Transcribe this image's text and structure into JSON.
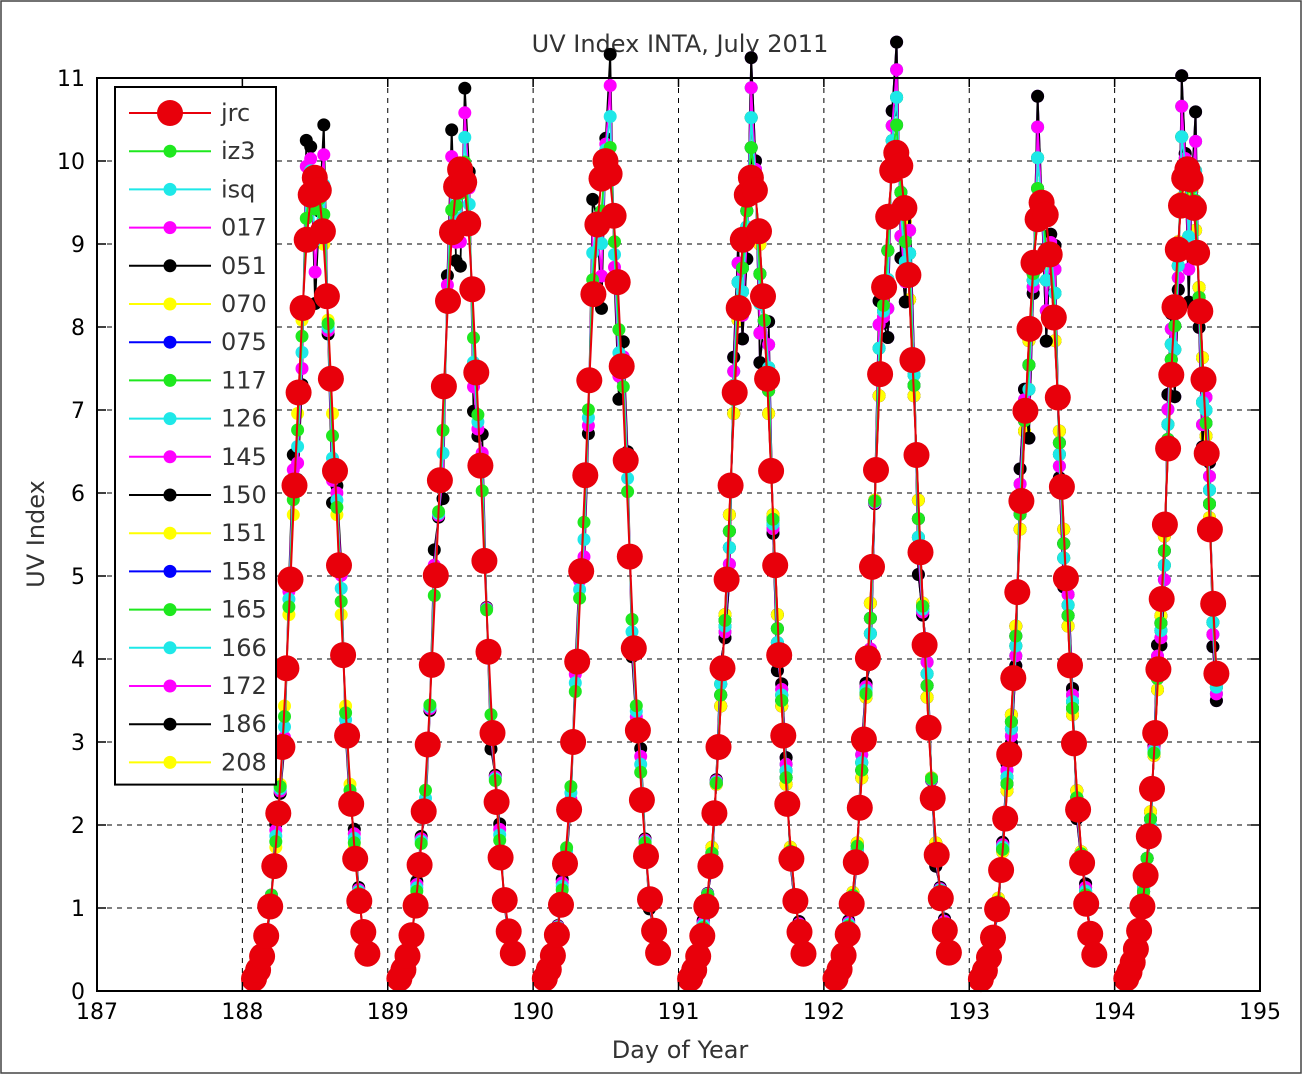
{
  "chart_data": {
    "type": "line",
    "title": "UV Index INTA, July 2011",
    "xlabel": "Day of Year",
    "ylabel": "UV Index",
    "xlim": [
      187,
      195
    ],
    "ylim": [
      0,
      11
    ],
    "xticks": [
      "187",
      "188",
      "189",
      "190",
      "191",
      "192",
      "193",
      "194",
      "195"
    ],
    "yticks": [
      "0",
      "1",
      "2",
      "3",
      "4",
      "5",
      "6",
      "7",
      "8",
      "9",
      "10",
      "11"
    ],
    "grid": true,
    "legend_position": "top-left",
    "days": [
      {
        "day": 188,
        "peak": 9.8,
        "start": 0.08,
        "end": 0.86
      },
      {
        "day": 189,
        "peak": 9.9,
        "start": 0.08,
        "end": 0.86
      },
      {
        "day": 190,
        "peak": 10.0,
        "start": 0.08,
        "end": 0.86
      },
      {
        "day": 191,
        "peak": 9.8,
        "start": 0.08,
        "end": 0.86
      },
      {
        "day": 192,
        "peak": 10.1,
        "start": 0.08,
        "end": 0.86
      },
      {
        "day": 193,
        "peak": 9.5,
        "start": 0.08,
        "end": 0.86
      },
      {
        "day": 194,
        "peak": 9.9,
        "start": 0.08,
        "end": 0.7
      }
    ],
    "series": [
      {
        "name": "jrc",
        "color": "#e8000b",
        "big": true,
        "days": [
          188,
          189,
          190,
          191,
          192,
          193,
          194
        ]
      },
      {
        "name": "iz3",
        "color": "#1ee81e",
        "days": [
          188,
          189,
          190,
          191,
          192,
          193,
          194
        ]
      },
      {
        "name": "isq",
        "color": "#1ee8e8",
        "days": [
          188,
          189,
          190,
          191,
          192,
          193,
          194
        ]
      },
      {
        "name": "017",
        "color": "#ff00ff",
        "days": [
          188,
          189,
          190,
          191,
          192,
          193,
          194
        ]
      },
      {
        "name": "051",
        "color": "#000000",
        "days": [
          188,
          189,
          190,
          191,
          192,
          193,
          194
        ]
      },
      {
        "name": "070",
        "color": "#ffff00",
        "days": [
          188,
          191,
          192,
          193,
          194
        ]
      },
      {
        "name": "075",
        "color": "#0000ff",
        "days": [
          191,
          192,
          193,
          194
        ]
      },
      {
        "name": "117",
        "color": "#1ee81e",
        "days": [
          191,
          192,
          193,
          194
        ]
      },
      {
        "name": "126",
        "color": "#1ee8e8",
        "days": [
          191,
          192,
          193,
          194
        ]
      },
      {
        "name": "145",
        "color": "#ff00ff",
        "days": [
          191,
          192,
          193,
          194
        ]
      },
      {
        "name": "150",
        "color": "#000000",
        "days": [
          191,
          192,
          193,
          194
        ]
      },
      {
        "name": "151",
        "color": "#ffff00",
        "days": [
          191,
          192,
          193,
          194
        ]
      },
      {
        "name": "158",
        "color": "#0000ff",
        "days": [
          191,
          192,
          193,
          194
        ]
      },
      {
        "name": "165",
        "color": "#1ee81e",
        "days": [
          191,
          192,
          193,
          194
        ]
      },
      {
        "name": "166",
        "color": "#1ee8e8",
        "days": [
          191,
          192,
          193,
          194
        ]
      },
      {
        "name": "172",
        "color": "#ff00ff",
        "days": [
          191,
          192,
          193,
          194
        ]
      },
      {
        "name": "186",
        "color": "#000000",
        "days": [
          191,
          192,
          193,
          194
        ]
      },
      {
        "name": "208",
        "color": "#ffff00",
        "days": [
          191,
          192,
          193,
          194
        ]
      }
    ]
  }
}
